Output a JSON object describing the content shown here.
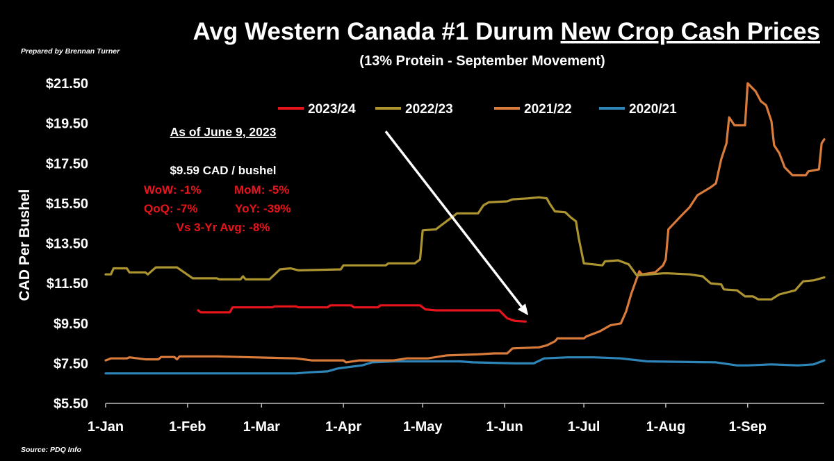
{
  "header": {
    "title_plain": "Avg Western Canada #1 Durum ",
    "title_underlined": "New Crop Cash Prices",
    "subtitle": "(13% Protein - September Movement)",
    "prepared_by": "Prepared by Brennan Turner",
    "source": "Source: PDQ Info"
  },
  "annotation": {
    "as_of": "As of June 9, 2023",
    "price": "$9.59 CAD / bushel",
    "wow": "WoW: -1%",
    "mom": "MoM: -5%",
    "qoq": "QoQ: -7%",
    "yoy": "YoY: -39%",
    "vs3yr": "Vs 3-Yr Avg: -8%",
    "arrow_start": [
      "2023-04-17",
      19.1
    ],
    "arrow_end": [
      "2023-06-10",
      9.9
    ]
  },
  "chart_data": {
    "type": "line",
    "title": "Avg Western Canada #1 Durum New Crop Cash Prices",
    "subtitle": "(13% Protein - September Movement)",
    "ylabel": "CAD Per Bushel",
    "xlabel": "",
    "x_type": "date",
    "xlim": [
      "2023-01-01",
      "2023-09-30"
    ],
    "ylim": [
      5.5,
      21.5
    ],
    "yticks": [
      5.5,
      7.5,
      9.5,
      11.5,
      13.5,
      15.5,
      17.5,
      19.5,
      21.5
    ],
    "ytick_labels": [
      "$5.50",
      "$7.50",
      "$9.50",
      "$11.50",
      "$13.50",
      "$15.50",
      "$17.50",
      "$19.50",
      "$21.50"
    ],
    "xticks": [
      "2023-01-01",
      "2023-02-01",
      "2023-03-01",
      "2023-04-01",
      "2023-05-01",
      "2023-06-01",
      "2023-07-01",
      "2023-08-01",
      "2023-09-01"
    ],
    "xtick_labels": [
      "1-Jan",
      "1-Feb",
      "1-Mar",
      "1-Apr",
      "1-May",
      "1-Jun",
      "1-Jul",
      "1-Aug",
      "1-Sep"
    ],
    "grid": false,
    "legend_position": "top",
    "series": [
      {
        "name": "2023/24",
        "color": "#e8141c",
        "points": [
          [
            "2023-02-05",
            10.15
          ],
          [
            "2023-02-06",
            10.05
          ],
          [
            "2023-02-17",
            10.05
          ],
          [
            "2023-02-18",
            10.3
          ],
          [
            "2023-03-05",
            10.3
          ],
          [
            "2023-03-06",
            10.35
          ],
          [
            "2023-03-14",
            10.35
          ],
          [
            "2023-03-15",
            10.3
          ],
          [
            "2023-03-26",
            10.3
          ],
          [
            "2023-03-27",
            10.4
          ],
          [
            "2023-04-04",
            10.4
          ],
          [
            "2023-04-05",
            10.3
          ],
          [
            "2023-04-14",
            10.3
          ],
          [
            "2023-04-15",
            10.4
          ],
          [
            "2023-04-30",
            10.4
          ],
          [
            "2023-05-02",
            10.2
          ],
          [
            "2023-05-06",
            10.15
          ],
          [
            "2023-05-30",
            10.15
          ],
          [
            "2023-06-02",
            9.75
          ],
          [
            "2023-06-05",
            9.62
          ],
          [
            "2023-06-09",
            9.59
          ]
        ]
      },
      {
        "name": "2022/23",
        "color": "#ac9431",
        "points": [
          [
            "2023-01-01",
            11.95
          ],
          [
            "2023-01-03",
            11.95
          ],
          [
            "2023-01-04",
            12.25
          ],
          [
            "2023-01-09",
            12.25
          ],
          [
            "2023-01-10",
            12.05
          ],
          [
            "2023-01-16",
            12.05
          ],
          [
            "2023-01-17",
            11.95
          ],
          [
            "2023-01-20",
            12.3
          ],
          [
            "2023-01-28",
            12.3
          ],
          [
            "2023-02-03",
            11.75
          ],
          [
            "2023-02-12",
            11.75
          ],
          [
            "2023-02-13",
            11.7
          ],
          [
            "2023-02-21",
            11.7
          ],
          [
            "2023-02-22",
            11.85
          ],
          [
            "2023-02-23",
            11.7
          ],
          [
            "2023-03-04",
            11.7
          ],
          [
            "2023-03-08",
            12.2
          ],
          [
            "2023-03-12",
            12.25
          ],
          [
            "2023-03-15",
            12.15
          ],
          [
            "2023-03-31",
            12.2
          ],
          [
            "2023-04-01",
            12.4
          ],
          [
            "2023-04-17",
            12.4
          ],
          [
            "2023-04-18",
            12.5
          ],
          [
            "2023-04-28",
            12.5
          ],
          [
            "2023-04-30",
            12.7
          ],
          [
            "2023-05-01",
            14.15
          ],
          [
            "2023-05-06",
            14.2
          ],
          [
            "2023-05-14",
            15.0
          ],
          [
            "2023-05-22",
            15.0
          ],
          [
            "2023-05-24",
            15.4
          ],
          [
            "2023-05-26",
            15.55
          ],
          [
            "2023-06-02",
            15.6
          ],
          [
            "2023-06-04",
            15.7
          ],
          [
            "2023-06-10",
            15.75
          ],
          [
            "2023-06-14",
            15.8
          ],
          [
            "2023-06-17",
            15.75
          ],
          [
            "2023-06-18",
            15.5
          ],
          [
            "2023-06-20",
            15.1
          ],
          [
            "2023-06-24",
            15.05
          ],
          [
            "2023-06-26",
            14.8
          ],
          [
            "2023-06-28",
            14.6
          ],
          [
            "2023-06-29",
            13.8
          ],
          [
            "2023-07-01",
            12.5
          ],
          [
            "2023-07-08",
            12.4
          ],
          [
            "2023-07-09",
            12.6
          ],
          [
            "2023-07-14",
            12.65
          ],
          [
            "2023-07-18",
            12.45
          ],
          [
            "2023-07-21",
            11.9
          ],
          [
            "2023-07-31",
            12.0
          ],
          [
            "2023-08-02",
            12.0
          ],
          [
            "2023-08-10",
            11.95
          ],
          [
            "2023-08-15",
            11.85
          ],
          [
            "2023-08-18",
            11.5
          ],
          [
            "2023-08-22",
            11.45
          ],
          [
            "2023-08-23",
            11.2
          ],
          [
            "2023-08-28",
            11.15
          ],
          [
            "2023-08-31",
            10.85
          ],
          [
            "2023-09-03",
            10.85
          ],
          [
            "2023-09-05",
            10.7
          ],
          [
            "2023-09-10",
            10.7
          ],
          [
            "2023-09-13",
            10.95
          ],
          [
            "2023-09-19",
            11.15
          ],
          [
            "2023-09-22",
            11.6
          ],
          [
            "2023-09-26",
            11.65
          ],
          [
            "2023-09-30",
            11.8
          ]
        ]
      },
      {
        "name": "2021/22",
        "color": "#d97b3a",
        "points": [
          [
            "2023-01-01",
            7.65
          ],
          [
            "2023-01-03",
            7.75
          ],
          [
            "2023-01-09",
            7.75
          ],
          [
            "2023-01-10",
            7.8
          ],
          [
            "2023-01-16",
            7.7
          ],
          [
            "2023-01-21",
            7.7
          ],
          [
            "2023-01-22",
            7.82
          ],
          [
            "2023-01-27",
            7.82
          ],
          [
            "2023-01-28",
            7.7
          ],
          [
            "2023-01-29",
            7.85
          ],
          [
            "2023-02-05",
            7.85
          ],
          [
            "2023-02-12",
            7.85
          ],
          [
            "2023-02-26",
            7.8
          ],
          [
            "2023-03-14",
            7.75
          ],
          [
            "2023-03-20",
            7.65
          ],
          [
            "2023-04-01",
            7.65
          ],
          [
            "2023-04-02",
            7.55
          ],
          [
            "2023-04-07",
            7.65
          ],
          [
            "2023-04-20",
            7.65
          ],
          [
            "2023-04-25",
            7.75
          ],
          [
            "2023-05-03",
            7.75
          ],
          [
            "2023-05-10",
            7.9
          ],
          [
            "2023-05-22",
            7.95
          ],
          [
            "2023-05-28",
            8.0
          ],
          [
            "2023-06-02",
            8.0
          ],
          [
            "2023-06-04",
            8.25
          ],
          [
            "2023-06-14",
            8.3
          ],
          [
            "2023-06-17",
            8.4
          ],
          [
            "2023-06-20",
            8.6
          ],
          [
            "2023-06-21",
            8.75
          ],
          [
            "2023-07-01",
            8.75
          ],
          [
            "2023-07-02",
            8.85
          ],
          [
            "2023-07-07",
            9.1
          ],
          [
            "2023-07-11",
            9.4
          ],
          [
            "2023-07-15",
            9.5
          ],
          [
            "2023-07-17",
            10.1
          ],
          [
            "2023-07-19",
            11.0
          ],
          [
            "2023-07-22",
            12.1
          ],
          [
            "2023-07-23",
            11.95
          ],
          [
            "2023-07-28",
            12.05
          ],
          [
            "2023-07-31",
            12.4
          ],
          [
            "2023-08-01",
            12.7
          ],
          [
            "2023-08-02",
            14.2
          ],
          [
            "2023-08-07",
            14.9
          ],
          [
            "2023-08-10",
            15.3
          ],
          [
            "2023-08-13",
            15.9
          ],
          [
            "2023-08-18",
            16.3
          ],
          [
            "2023-08-20",
            16.5
          ],
          [
            "2023-08-22",
            17.7
          ],
          [
            "2023-08-24",
            18.5
          ],
          [
            "2023-08-25",
            19.8
          ],
          [
            "2023-08-27",
            19.4
          ],
          [
            "2023-08-31",
            19.4
          ],
          [
            "2023-09-01",
            21.5
          ],
          [
            "2023-09-04",
            21.1
          ],
          [
            "2023-09-06",
            20.6
          ],
          [
            "2023-09-08",
            20.4
          ],
          [
            "2023-09-10",
            19.6
          ],
          [
            "2023-09-11",
            18.4
          ],
          [
            "2023-09-13",
            18.0
          ],
          [
            "2023-09-15",
            17.3
          ],
          [
            "2023-09-18",
            16.9
          ],
          [
            "2023-09-23",
            16.9
          ],
          [
            "2023-09-24",
            17.1
          ],
          [
            "2023-09-28",
            17.2
          ],
          [
            "2023-09-29",
            18.5
          ],
          [
            "2023-09-30",
            18.7
          ]
        ]
      },
      {
        "name": "2020/21",
        "color": "#2e86b8",
        "points": [
          [
            "2023-01-01",
            7.0
          ],
          [
            "2023-03-14",
            7.0
          ],
          [
            "2023-03-19",
            7.05
          ],
          [
            "2023-03-26",
            7.1
          ],
          [
            "2023-03-30",
            7.25
          ],
          [
            "2023-04-08",
            7.4
          ],
          [
            "2023-04-12",
            7.55
          ],
          [
            "2023-04-20",
            7.6
          ],
          [
            "2023-05-15",
            7.6
          ],
          [
            "2023-05-20",
            7.55
          ],
          [
            "2023-06-05",
            7.5
          ],
          [
            "2023-06-12",
            7.5
          ],
          [
            "2023-06-16",
            7.75
          ],
          [
            "2023-06-25",
            7.8
          ],
          [
            "2023-07-05",
            7.8
          ],
          [
            "2023-07-15",
            7.75
          ],
          [
            "2023-07-25",
            7.6
          ],
          [
            "2023-08-20",
            7.55
          ],
          [
            "2023-08-28",
            7.4
          ],
          [
            "2023-09-01",
            7.4
          ],
          [
            "2023-09-10",
            7.45
          ],
          [
            "2023-09-20",
            7.4
          ],
          [
            "2023-09-26",
            7.45
          ],
          [
            "2023-09-30",
            7.65
          ]
        ]
      }
    ]
  }
}
